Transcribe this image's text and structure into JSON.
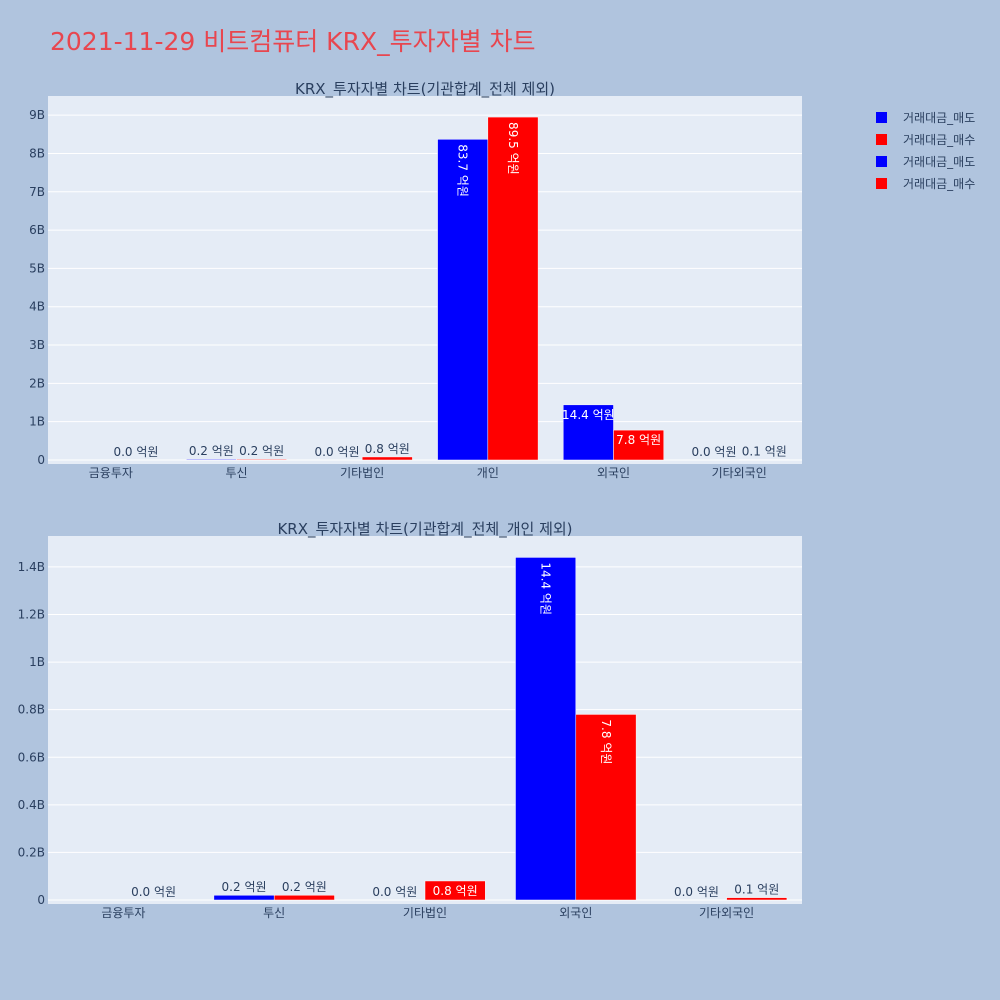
{
  "title": "2021-11-29 비트컴퓨터 KRX_투자자별 차트",
  "colors": {
    "sell": "#0000ff",
    "buy": "#ff0000",
    "plot_bg": "#e5ecf6",
    "page_bg": "#b0c4de",
    "title": "#e8464f"
  },
  "legend": [
    {
      "label": "거래대금_매도",
      "color": "#0000ff"
    },
    {
      "label": "거래대금_매수",
      "color": "#ff0000"
    },
    {
      "label": "거래대금_매도",
      "color": "#0000ff"
    },
    {
      "label": "거래대금_매수",
      "color": "#ff0000"
    }
  ],
  "chart_data": [
    {
      "type": "bar",
      "title": "KRX_투자자별 차트(기관합계_전체 제외)",
      "categories": [
        "금융투자",
        "투신",
        "기타법인",
        "개인",
        "외국인",
        "기타외국인"
      ],
      "series": [
        {
          "name": "거래대금_매도",
          "color": "#0000ff",
          "values": [
            0,
            20000000,
            0,
            8370000000,
            1440000000,
            0
          ],
          "labels": [
            "",
            "0.2 억원",
            "0.0 억원",
            "83.7 억원",
            "14.4 억원",
            "0.0 억원"
          ]
        },
        {
          "name": "거래대금_매수",
          "color": "#ff0000",
          "values": [
            0,
            20000000,
            80000000,
            8950000000,
            780000000,
            10000000
          ],
          "labels": [
            "0.0 억원",
            "0.2 억원",
            "0.8 억원",
            "89.5 억원",
            "7.8 억원",
            "0.1 억원"
          ]
        }
      ],
      "ylim": [
        0,
        9500000000
      ],
      "yticks": [
        {
          "v": 0,
          "label": "0"
        },
        {
          "v": 1000000000,
          "label": "1B"
        },
        {
          "v": 2000000000,
          "label": "2B"
        },
        {
          "v": 3000000000,
          "label": "3B"
        },
        {
          "v": 4000000000,
          "label": "4B"
        },
        {
          "v": 5000000000,
          "label": "5B"
        },
        {
          "v": 6000000000,
          "label": "6B"
        },
        {
          "v": 7000000000,
          "label": "7B"
        },
        {
          "v": 8000000000,
          "label": "8B"
        },
        {
          "v": 9000000000,
          "label": "9B"
        }
      ],
      "grid": true
    },
    {
      "type": "bar",
      "title": "KRX_투자자별 차트(기관합계_전체_개인 제외)",
      "categories": [
        "금융투자",
        "투신",
        "기타법인",
        "외국인",
        "기타외국인"
      ],
      "series": [
        {
          "name": "거래대금_매도",
          "color": "#0000ff",
          "values": [
            0,
            20000000,
            0,
            1440000000,
            0
          ],
          "labels": [
            "",
            "0.2 억원",
            "0.0 억원",
            "14.4 억원",
            "0.0 억원"
          ]
        },
        {
          "name": "거래대금_매수",
          "color": "#ff0000",
          "values": [
            0,
            20000000,
            80000000,
            780000000,
            10000000
          ],
          "labels": [
            "0.0 억원",
            "0.2 억원",
            "0.8 억원",
            "7.8 억원",
            "0.1 억원"
          ]
        }
      ],
      "ylim": [
        0,
        1530000000
      ],
      "yticks": [
        {
          "v": 0,
          "label": "0"
        },
        {
          "v": 200000000,
          "label": "0.2B"
        },
        {
          "v": 400000000,
          "label": "0.4B"
        },
        {
          "v": 600000000,
          "label": "0.6B"
        },
        {
          "v": 800000000,
          "label": "0.8B"
        },
        {
          "v": 1000000000,
          "label": "1B"
        },
        {
          "v": 1200000000,
          "label": "1.2B"
        },
        {
          "v": 1400000000,
          "label": "1.4B"
        }
      ],
      "grid": true
    }
  ]
}
